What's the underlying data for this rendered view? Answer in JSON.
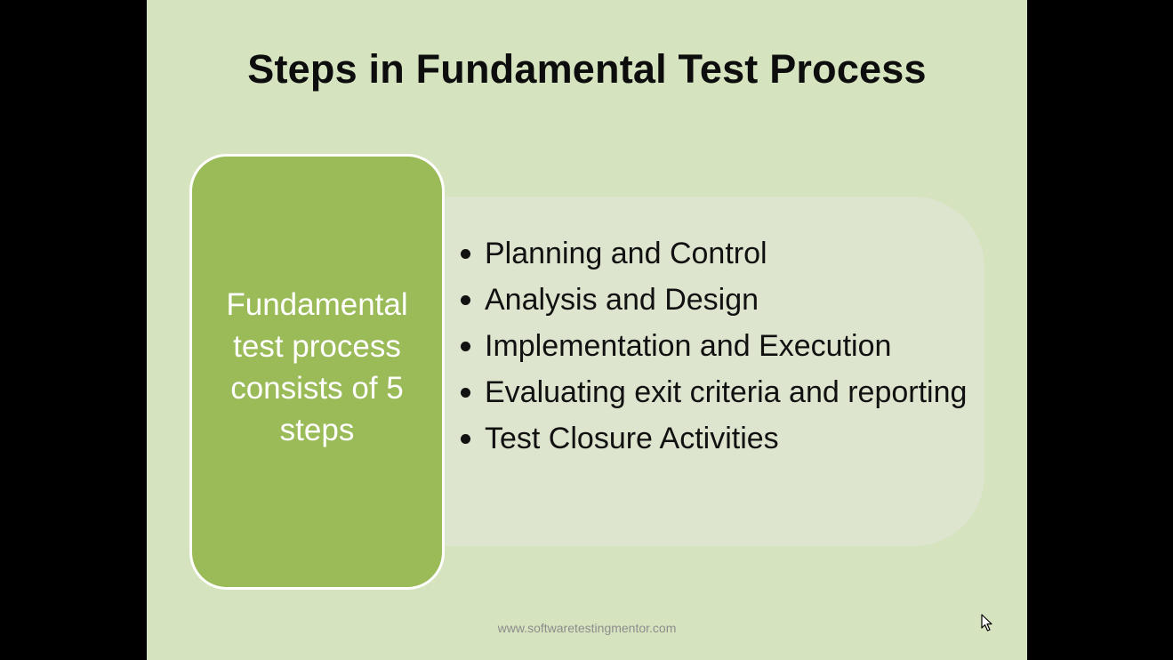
{
  "slide": {
    "title": "Steps in Fundamental Test Process",
    "box_text": "Fundamental test process consists of 5 steps",
    "steps": [
      "Planning and Control",
      "Analysis and Design",
      "Implementation and Execution",
      "Evaluating exit criteria and reporting",
      "Test Closure Activities"
    ],
    "footer": "www.softwaretestingmentor.com"
  },
  "colors": {
    "background": "#d6e3bf",
    "box_fill": "#9bbb59",
    "panel_fill": "#dde5cf",
    "letterbox": "#000000"
  },
  "icons": {
    "cursor": "mouse-pointer-icon"
  }
}
